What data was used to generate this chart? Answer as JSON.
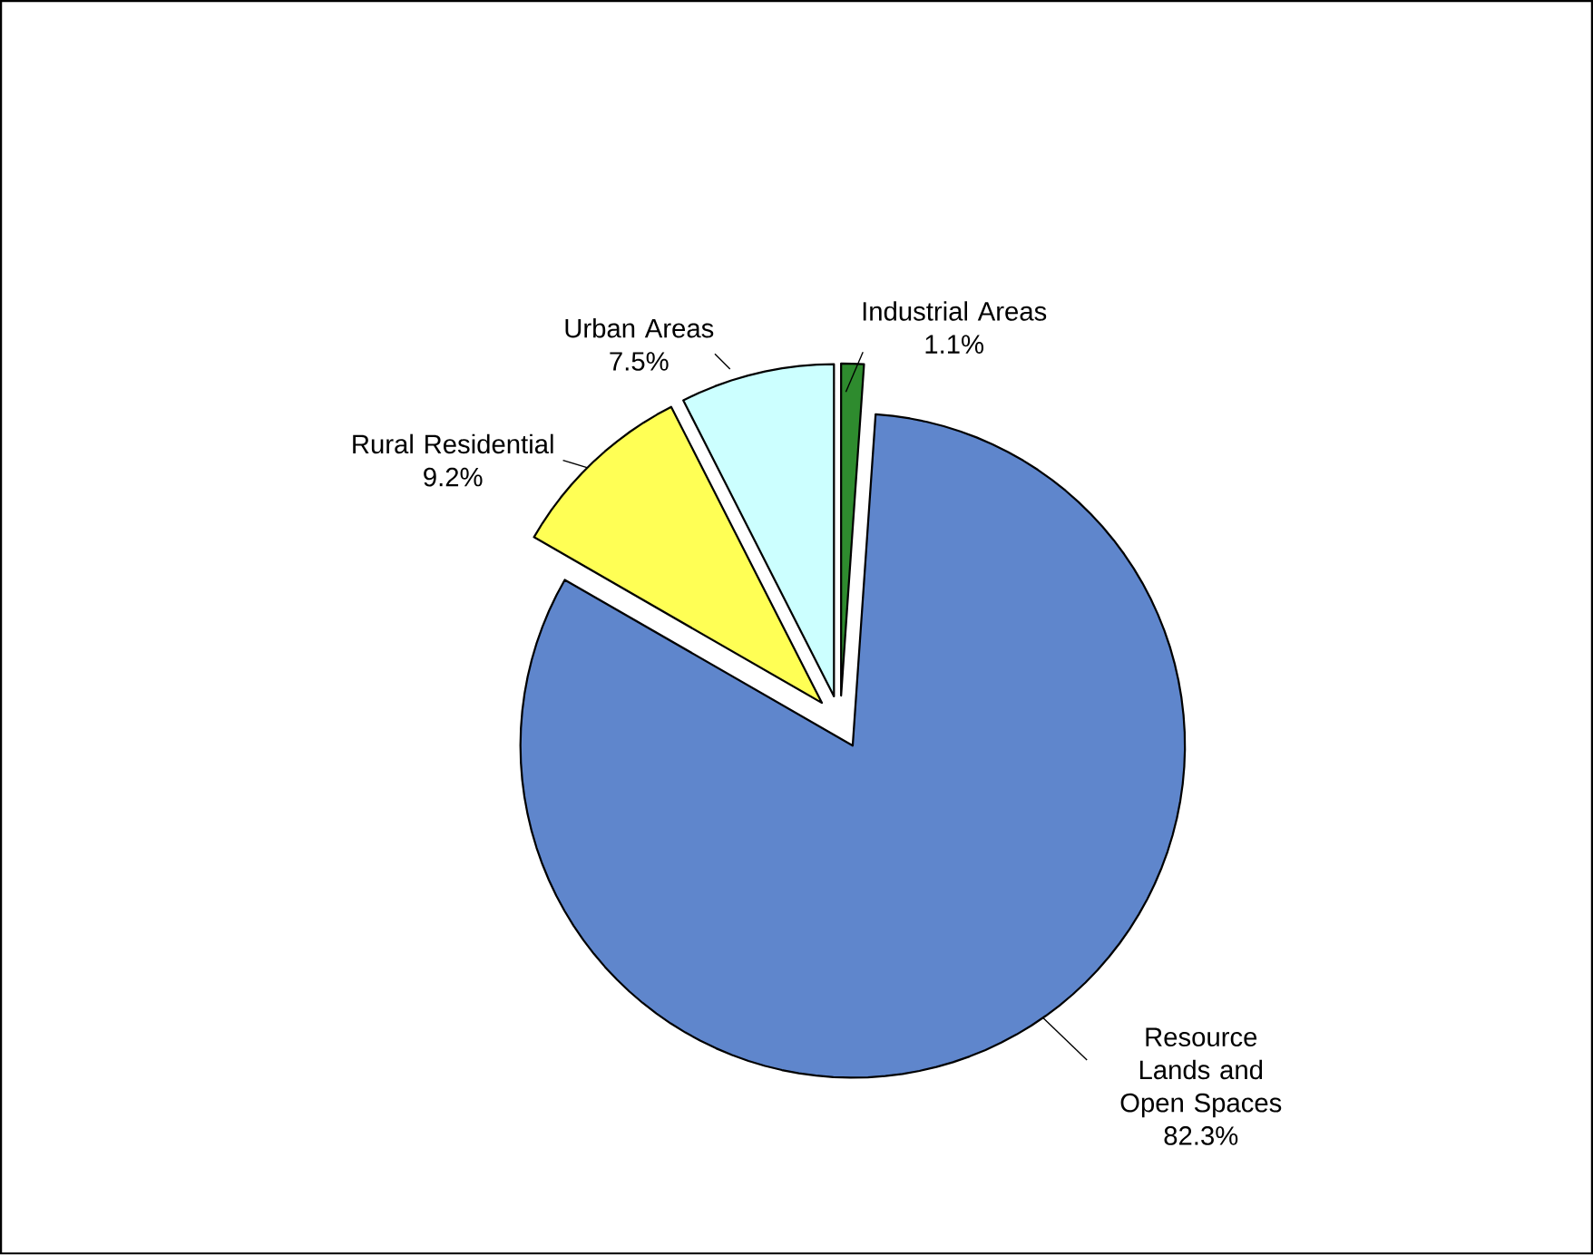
{
  "chart_data": {
    "type": "pie",
    "categories": [
      "Industrial Areas",
      "Resource Lands and Open Spaces",
      "Rural Residential",
      "Urban Areas"
    ],
    "values": [
      1.1,
      82.3,
      9.2,
      7.5
    ],
    "value_labels": [
      "1.1%",
      "82.3%",
      "9.2%",
      "7.5%"
    ],
    "colors": [
      "#2e8b2e",
      "#5f86cc",
      "#ffff55",
      "#ccffff"
    ]
  }
}
